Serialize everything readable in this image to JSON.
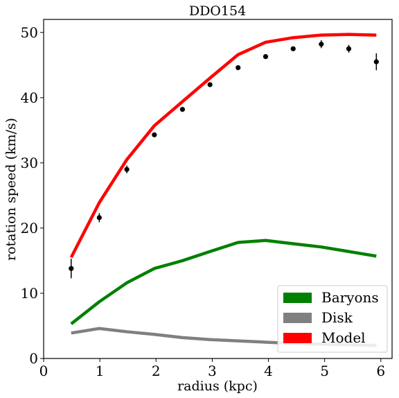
{
  "chart_data": {
    "type": "line",
    "title": "DDO154",
    "xlabel": "radius (kpc)",
    "ylabel": "rotation speed (km/s)",
    "xlim": [
      0,
      6.2
    ],
    "ylim": [
      0,
      52
    ],
    "xticks": [
      0,
      1,
      2,
      3,
      4,
      5,
      6
    ],
    "yticks": [
      0,
      10,
      20,
      30,
      40,
      50
    ],
    "xtick_labels": [
      "0",
      "1",
      "2",
      "3",
      "4",
      "5",
      "6"
    ],
    "ytick_labels": [
      "0",
      "10",
      "20",
      "30",
      "40",
      "50"
    ],
    "grid": false,
    "legend_position": "lower-right",
    "series": [
      {
        "name": "Baryons",
        "color": "#008000",
        "x": [
          0.49,
          0.99,
          1.48,
          1.97,
          2.47,
          2.96,
          3.46,
          3.95,
          4.44,
          4.94,
          5.43,
          5.92
        ],
        "values": [
          5.3,
          8.7,
          11.6,
          13.8,
          15.0,
          16.4,
          17.8,
          18.1,
          17.6,
          17.1,
          16.4,
          15.7
        ]
      },
      {
        "name": "Disk",
        "color": "#808080",
        "x": [
          0.49,
          0.99,
          1.48,
          1.97,
          2.47,
          2.96,
          3.46,
          3.95,
          4.44,
          4.94,
          5.43,
          5.92
        ],
        "values": [
          3.9,
          4.6,
          4.1,
          3.7,
          3.2,
          2.9,
          2.7,
          2.5,
          2.3,
          2.2,
          2.1,
          2.0
        ]
      },
      {
        "name": "Model",
        "color": "#ff0000",
        "x": [
          0.49,
          0.99,
          1.48,
          1.97,
          2.47,
          2.96,
          3.46,
          3.95,
          4.44,
          4.94,
          5.43,
          5.92
        ],
        "values": [
          15.5,
          23.9,
          30.5,
          35.7,
          39.4,
          43.0,
          46.6,
          48.5,
          49.2,
          49.6,
          49.7,
          49.6
        ]
      }
    ],
    "observations": {
      "color": "#000000",
      "x": [
        0.49,
        0.99,
        1.48,
        1.97,
        2.47,
        2.96,
        3.46,
        3.95,
        4.44,
        4.94,
        5.43,
        5.92
      ],
      "values": [
        13.8,
        21.6,
        29.0,
        34.3,
        38.2,
        42.0,
        44.6,
        46.3,
        47.5,
        48.2,
        47.5,
        45.5
      ],
      "errors": [
        1.5,
        0.7,
        0.6,
        0.3,
        0.3,
        0.2,
        0.2,
        0.2,
        0.3,
        0.6,
        0.6,
        1.3
      ]
    }
  }
}
